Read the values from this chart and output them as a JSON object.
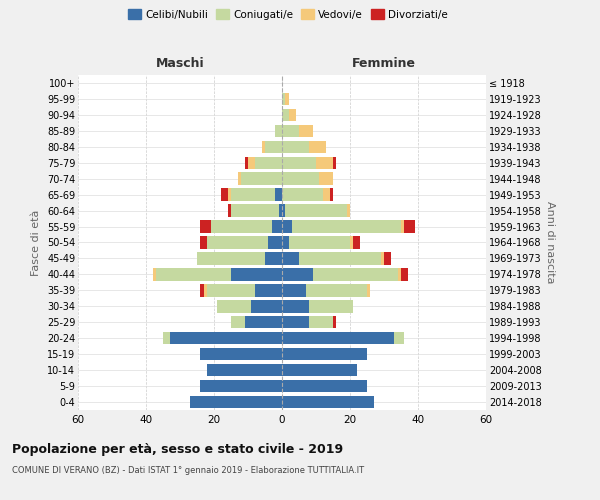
{
  "age_groups": [
    "0-4",
    "5-9",
    "10-14",
    "15-19",
    "20-24",
    "25-29",
    "30-34",
    "35-39",
    "40-44",
    "45-49",
    "50-54",
    "55-59",
    "60-64",
    "65-69",
    "70-74",
    "75-79",
    "80-84",
    "85-89",
    "90-94",
    "95-99",
    "100+"
  ],
  "birth_years": [
    "2014-2018",
    "2009-2013",
    "2004-2008",
    "1999-2003",
    "1994-1998",
    "1989-1993",
    "1984-1988",
    "1979-1983",
    "1974-1978",
    "1969-1973",
    "1964-1968",
    "1959-1963",
    "1954-1958",
    "1949-1953",
    "1944-1948",
    "1939-1943",
    "1934-1938",
    "1929-1933",
    "1924-1928",
    "1919-1923",
    "≤ 1918"
  ],
  "male": {
    "celibi": [
      27,
      24,
      22,
      24,
      33,
      11,
      9,
      8,
      15,
      5,
      4,
      3,
      1,
      2,
      0,
      0,
      0,
      0,
      0,
      0,
      0
    ],
    "coniugati": [
      0,
      0,
      0,
      0,
      2,
      4,
      10,
      14,
      22,
      20,
      18,
      18,
      14,
      13,
      12,
      8,
      5,
      2,
      0,
      0,
      0
    ],
    "vedovi": [
      0,
      0,
      0,
      0,
      0,
      0,
      0,
      1,
      1,
      0,
      0,
      0,
      0,
      1,
      1,
      2,
      1,
      0,
      0,
      0,
      0
    ],
    "divorziati": [
      0,
      0,
      0,
      0,
      0,
      0,
      0,
      1,
      0,
      0,
      2,
      3,
      1,
      2,
      0,
      1,
      0,
      0,
      0,
      0,
      0
    ]
  },
  "female": {
    "nubili": [
      27,
      25,
      22,
      25,
      33,
      8,
      8,
      7,
      9,
      5,
      2,
      3,
      1,
      0,
      0,
      0,
      0,
      0,
      0,
      0,
      0
    ],
    "coniugate": [
      0,
      0,
      0,
      0,
      3,
      7,
      13,
      18,
      25,
      24,
      18,
      32,
      18,
      12,
      11,
      10,
      8,
      5,
      2,
      1,
      0
    ],
    "vedove": [
      0,
      0,
      0,
      0,
      0,
      0,
      0,
      1,
      1,
      1,
      1,
      1,
      1,
      2,
      4,
      5,
      5,
      4,
      2,
      1,
      0
    ],
    "divorziate": [
      0,
      0,
      0,
      0,
      0,
      1,
      0,
      0,
      2,
      2,
      2,
      3,
      0,
      1,
      0,
      1,
      0,
      0,
      0,
      0,
      0
    ]
  },
  "colors": {
    "celibi": "#3a6fa8",
    "coniugati": "#c5d9a0",
    "vedovi": "#f5c97a",
    "divorziati": "#cc2222"
  },
  "xlim": 60,
  "title": "Popolazione per età, sesso e stato civile - 2019",
  "subtitle": "COMUNE DI VERANO (BZ) - Dati ISTAT 1° gennaio 2019 - Elaborazione TUTTITALIA.IT",
  "ylabel_left": "Fasce di età",
  "ylabel_right": "Anni di nascita",
  "xlabel_male": "Maschi",
  "xlabel_female": "Femmine",
  "bg_color": "#f0f0f0",
  "plot_bg": "#ffffff"
}
